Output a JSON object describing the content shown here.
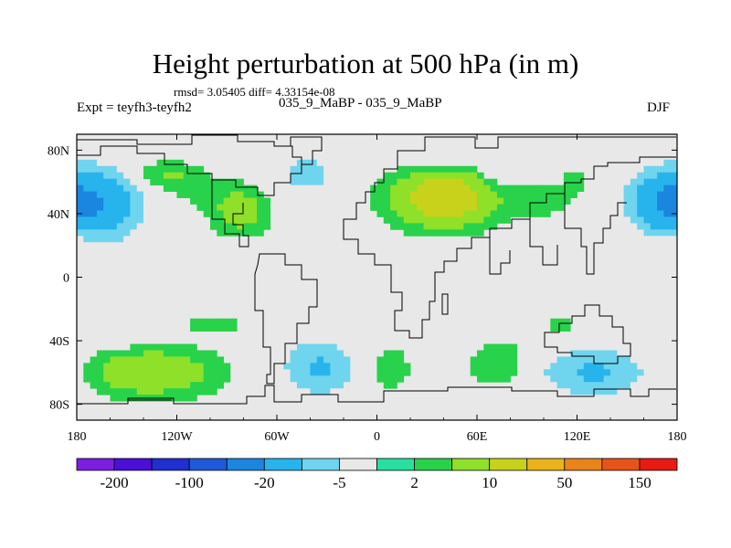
{
  "chart_data": {
    "type": "heatmap",
    "title": "Height perturbation at 500 hPa (in m)",
    "stats_text": "rmsd= 3.05405 diff= 4.33154e-08",
    "left_label": "Expt = teyfh3-teyfh2",
    "center_label": "035_9_MaBP - 035_9_MaBP",
    "right_label": "DJF",
    "xlim": [
      -180,
      180
    ],
    "ylim": [
      -90,
      90
    ],
    "x_ticks": [
      {
        "value": -180,
        "label": "180"
      },
      {
        "value": -120,
        "label": "120W"
      },
      {
        "value": -60,
        "label": "60W"
      },
      {
        "value": 0,
        "label": "0"
      },
      {
        "value": 60,
        "label": "60E"
      },
      {
        "value": 120,
        "label": "120E"
      },
      {
        "value": 180,
        "label": "180"
      }
    ],
    "y_ticks": [
      {
        "value": 80,
        "label": "80N"
      },
      {
        "value": 40,
        "label": "40N"
      },
      {
        "value": 0,
        "label": "0"
      },
      {
        "value": -40,
        "label": "40S"
      },
      {
        "value": -80,
        "label": "80S"
      }
    ],
    "colorbar": {
      "colors": [
        "#7a1fe0",
        "#4b0fd8",
        "#1f2fd0",
        "#1e5ad9",
        "#1a86e0",
        "#27b4ec",
        "#6fd4ee",
        "#e8e8e8",
        "#27e0a0",
        "#28d24a",
        "#8fe028",
        "#c9d21a",
        "#e8b41a",
        "#e88418",
        "#e85418",
        "#e81a14"
      ],
      "labels": [
        {
          "after_box": 1,
          "text": "-200"
        },
        {
          "after_box": 3,
          "text": "-100"
        },
        {
          "after_box": 5,
          "text": "-20"
        },
        {
          "after_box": 7,
          "text": "-5"
        },
        {
          "after_box": 9,
          "text": "2"
        },
        {
          "after_box": 11,
          "text": "10"
        },
        {
          "after_box": 13,
          "text": "50"
        },
        {
          "after_box": 15,
          "text": "150"
        }
      ]
    },
    "anomalies": [
      {
        "lon": -168,
        "lat": 46,
        "rlon": 26,
        "rlat": 22,
        "value": -18
      },
      {
        "lon": -128,
        "lat": 64,
        "rlon": 22,
        "rlat": 9,
        "value": 6
      },
      {
        "lon": -108,
        "lat": 54,
        "rlon": 14,
        "rlat": 10,
        "value": 3
      },
      {
        "lon": -82,
        "lat": 42,
        "rlon": 17,
        "rlat": 15,
        "value": 8
      },
      {
        "lon": -42,
        "lat": 65,
        "rlon": 16,
        "rlat": 11,
        "value": -8
      },
      {
        "lon": -20,
        "lat": 68,
        "rlon": 7,
        "rlat": 8,
        "value": -3
      },
      {
        "lon": 40,
        "lat": 50,
        "rlon": 30,
        "rlat": 18,
        "value": 16
      },
      {
        "lon": 30,
        "lat": 76,
        "rlon": 24,
        "rlat": 7,
        "value": -4
      },
      {
        "lon": 75,
        "lat": 70,
        "rlon": 14,
        "rlat": 10,
        "value": -6
      },
      {
        "lon": 100,
        "lat": 48,
        "rlon": 22,
        "rlat": 12,
        "value": 3
      },
      {
        "lon": 95,
        "lat": 30,
        "rlon": 6,
        "rlat": 5,
        "value": -3
      },
      {
        "lon": 120,
        "lat": 62,
        "rlon": 10,
        "rlat": 10,
        "value": 2.5
      },
      {
        "lon": 170,
        "lat": 48,
        "rlon": 20,
        "rlat": 18,
        "value": -14
      },
      {
        "lon": -180,
        "lat": 30,
        "rlon": 8,
        "rlat": 14,
        "value": 4
      },
      {
        "lon": -135,
        "lat": -60,
        "rlon": 38,
        "rlat": 15,
        "value": 10
      },
      {
        "lon": -150,
        "lat": -35,
        "rlon": 14,
        "rlat": 7,
        "value": -4
      },
      {
        "lon": -98,
        "lat": -30,
        "rlon": 22,
        "rlat": 6,
        "value": 3
      },
      {
        "lon": -35,
        "lat": -57,
        "rlon": 22,
        "rlat": 18,
        "value": -11
      },
      {
        "lon": 8,
        "lat": -57,
        "rlon": 11,
        "rlat": 13,
        "value": 5
      },
      {
        "lon": 45,
        "lat": -46,
        "rlon": 8,
        "rlat": 5,
        "value": -5
      },
      {
        "lon": 75,
        "lat": -55,
        "rlon": 20,
        "rlat": 15,
        "value": 5
      },
      {
        "lon": 130,
        "lat": -60,
        "rlon": 35,
        "rlat": 15,
        "value": -11
      },
      {
        "lon": 160,
        "lat": -37,
        "rlon": 10,
        "rlat": 6,
        "value": -4
      },
      {
        "lon": 110,
        "lat": -30,
        "rlon": 14,
        "rlat": 6,
        "value": 3
      }
    ]
  }
}
